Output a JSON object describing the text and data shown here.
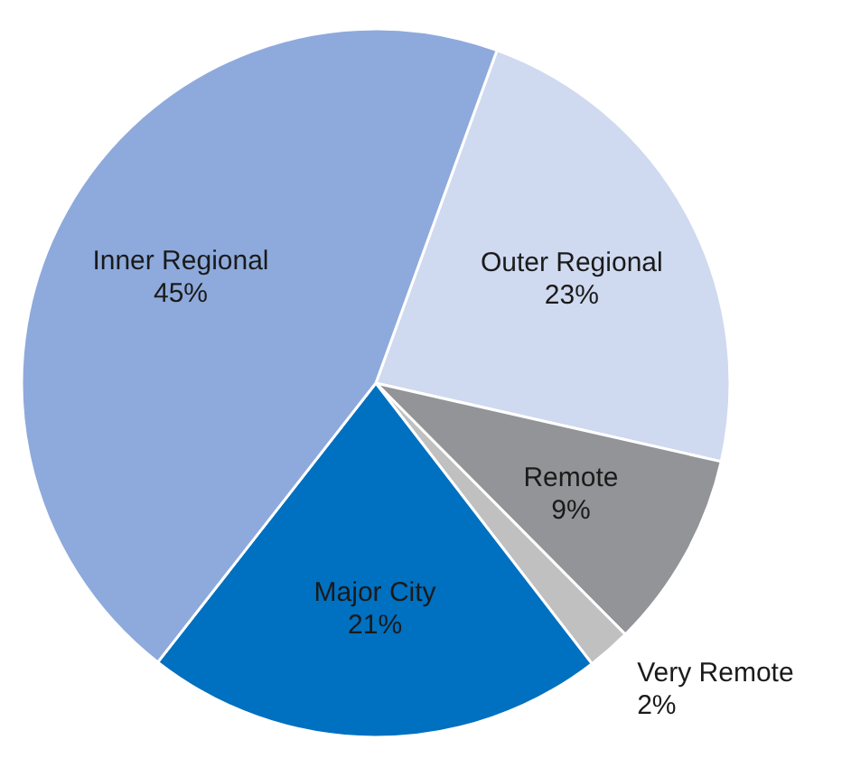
{
  "chart_data": {
    "type": "pie",
    "categories": [
      "Outer Regional",
      "Remote",
      "Very Remote",
      "Major City",
      "Inner Regional"
    ],
    "values": [
      23,
      9,
      2,
      21,
      45
    ],
    "colors": [
      "#cfdaf0",
      "#929497",
      "#c0c0c0",
      "#0070c0",
      "#8eaadc"
    ],
    "value_labels": [
      "23%",
      "9%",
      "2%",
      "21%",
      "45%"
    ]
  }
}
